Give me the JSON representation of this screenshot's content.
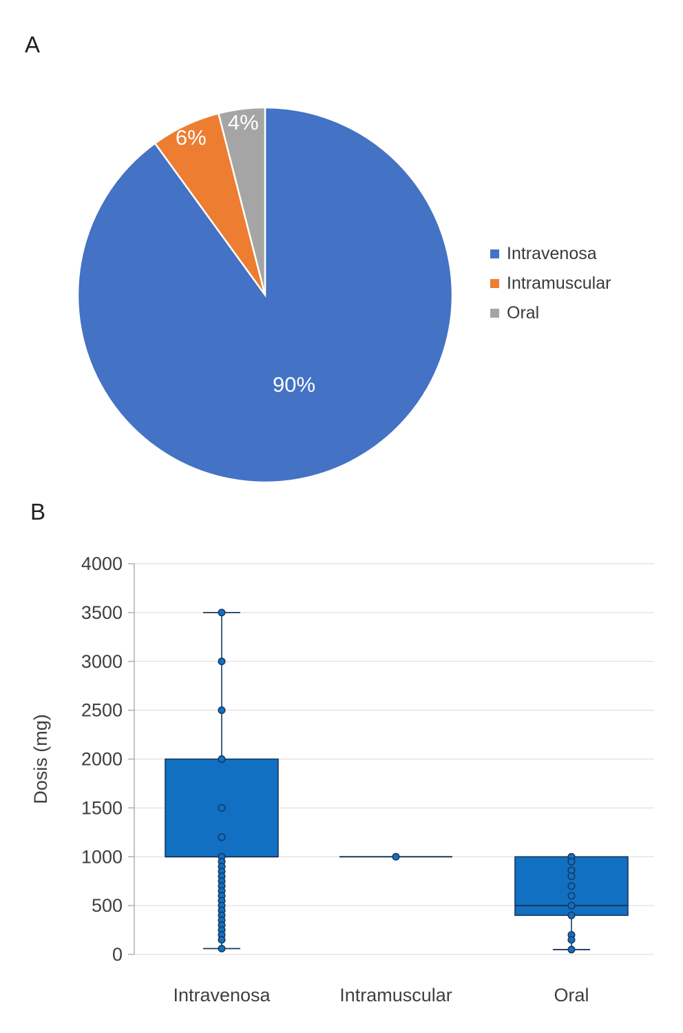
{
  "panels": {
    "a_label": "A",
    "b_label": "B"
  },
  "chart_data": [
    {
      "type": "pie",
      "categories": [
        "Intravenosa",
        "Intramuscular",
        "Oral"
      ],
      "values": [
        90,
        6,
        4
      ],
      "labels": [
        "90%",
        "6%",
        "4%"
      ],
      "colors": [
        "#4472C4",
        "#ED7D31",
        "#A5A5A5"
      ],
      "label_color": "#FFFFFF",
      "legend_position": "right",
      "start_angle_deg": 0,
      "direction": "clockwise"
    },
    {
      "type": "boxplot",
      "ylabel": "Dosis (mg)",
      "ylim": [
        0,
        4000
      ],
      "ytick_step": 500,
      "grid": true,
      "grid_color": "#D9D9D9",
      "axis_color": "#ABABAB",
      "box_fill": "#1170C1",
      "box_border": "#17375E",
      "point_fill": "#1170C1",
      "categories": [
        "Intravenosa",
        "Intramuscular",
        "Oral"
      ],
      "series": [
        {
          "name": "Intravenosa",
          "whisker_low": 60,
          "q1": 1000,
          "median": 1000,
          "q3": 2000,
          "whisker_high": 3500,
          "points": [
            3500,
            3000,
            2500,
            2000,
            1500,
            1200,
            1000,
            950,
            900,
            850,
            800,
            750,
            700,
            650,
            600,
            550,
            500,
            450,
            400,
            350,
            300,
            250,
            200,
            150,
            60
          ]
        },
        {
          "name": "Intramuscular",
          "whisker_low": 1000,
          "q1": 1000,
          "median": 1000,
          "q3": 1000,
          "whisker_high": 1000,
          "points": [
            1000
          ]
        },
        {
          "name": "Oral",
          "whisker_low": 50,
          "q1": 400,
          "median": 500,
          "q3": 1000,
          "whisker_high": 1000,
          "points": [
            1000,
            950,
            860,
            800,
            700,
            600,
            500,
            400,
            200,
            150,
            50
          ]
        }
      ]
    }
  ]
}
